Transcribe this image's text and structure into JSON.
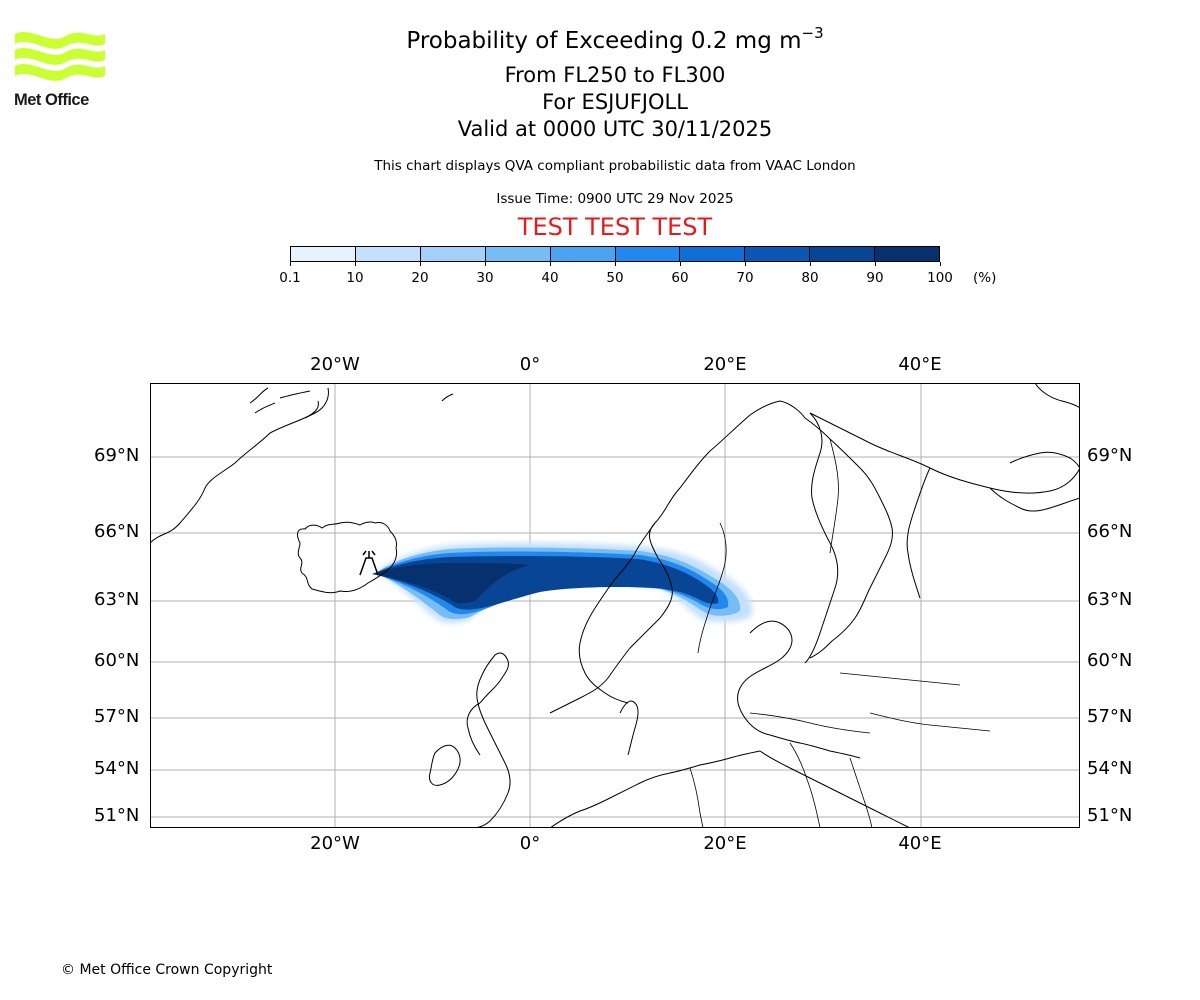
{
  "header": {
    "logo_text": "Met Office",
    "title_main": "Probability of Exceeding 0.2 mg m",
    "title_sup": "−3",
    "line1": "From FL250 to FL300",
    "line2": "For ESJUFJOLL",
    "line3": "Valid at 0000 UTC 30/11/2025",
    "subtitle": "This chart displays QVA compliant probabilistic data from VAAC London",
    "issue_time": "Issue Time: 0900 UTC 29 Nov 2025",
    "test_banner": "TEST TEST TEST",
    "brand_color": "#ccff33",
    "test_color": "#e41a1c"
  },
  "colorbar": {
    "ticks": [
      "0.1",
      "10",
      "20",
      "30",
      "40",
      "50",
      "60",
      "70",
      "80",
      "90",
      "100"
    ],
    "unit": "(%)",
    "colors": [
      "#e6f2fd",
      "#c4e0fb",
      "#a3d0f8",
      "#76bcf5",
      "#4ba4f1",
      "#2088ee",
      "#0f6fd6",
      "#0b57b4",
      "#084594",
      "#06306e"
    ]
  },
  "map": {
    "lon_labels": [
      "20°W",
      "0°",
      "20°E",
      "40°E"
    ],
    "lat_labels": [
      "69°N",
      "66°N",
      "63°N",
      "60°N",
      "57°N",
      "54°N",
      "51°N"
    ],
    "volcano_icon": "volcano-icon"
  },
  "footer": {
    "copyright": "© Met Office Crown Copyright"
  }
}
